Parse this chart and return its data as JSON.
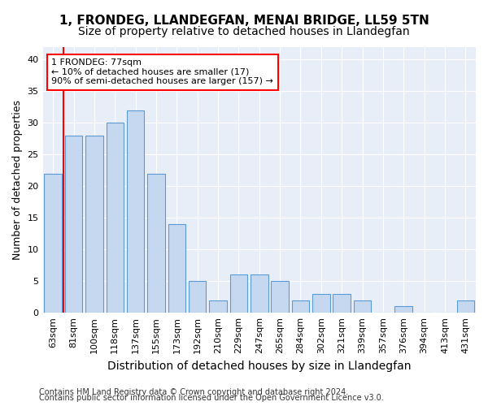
{
  "title1": "1, FRONDEG, LLANDEGFAN, MENAI BRIDGE, LL59 5TN",
  "title2": "Size of property relative to detached houses in Llandegfan",
  "xlabel": "Distribution of detached houses by size in Llandegfan",
  "ylabel": "Number of detached properties",
  "categories": [
    "63sqm",
    "81sqm",
    "100sqm",
    "118sqm",
    "137sqm",
    "155sqm",
    "173sqm",
    "192sqm",
    "210sqm",
    "229sqm",
    "247sqm",
    "265sqm",
    "284sqm",
    "302sqm",
    "321sqm",
    "339sqm",
    "357sqm",
    "376sqm",
    "394sqm",
    "413sqm",
    "431sqm"
  ],
  "values": [
    22,
    28,
    28,
    30,
    32,
    22,
    14,
    5,
    2,
    6,
    6,
    5,
    2,
    3,
    3,
    2,
    0,
    1,
    0,
    0,
    2
  ],
  "bar_color": "#c5d8f0",
  "bar_edge_color": "#5b9bd5",
  "annotation_line1": "1 FRONDEG: 77sqm",
  "annotation_line2": "← 10% of detached houses are smaller (17)",
  "annotation_line3": "90% of semi-detached houses are larger (157) →",
  "red_line_x": 0.5,
  "ylim": [
    0,
    42
  ],
  "yticks": [
    0,
    5,
    10,
    15,
    20,
    25,
    30,
    35,
    40
  ],
  "footer_line1": "Contains HM Land Registry data © Crown copyright and database right 2024.",
  "footer_line2": "Contains public sector information licensed under the Open Government Licence v3.0.",
  "background_color": "#e8eef8",
  "grid_color": "#c8d4e8",
  "title_fontsize": 11,
  "subtitle_fontsize": 10,
  "xlabel_fontsize": 10,
  "ylabel_fontsize": 9,
  "tick_fontsize": 8,
  "ann_fontsize": 8,
  "footer_fontsize": 7
}
